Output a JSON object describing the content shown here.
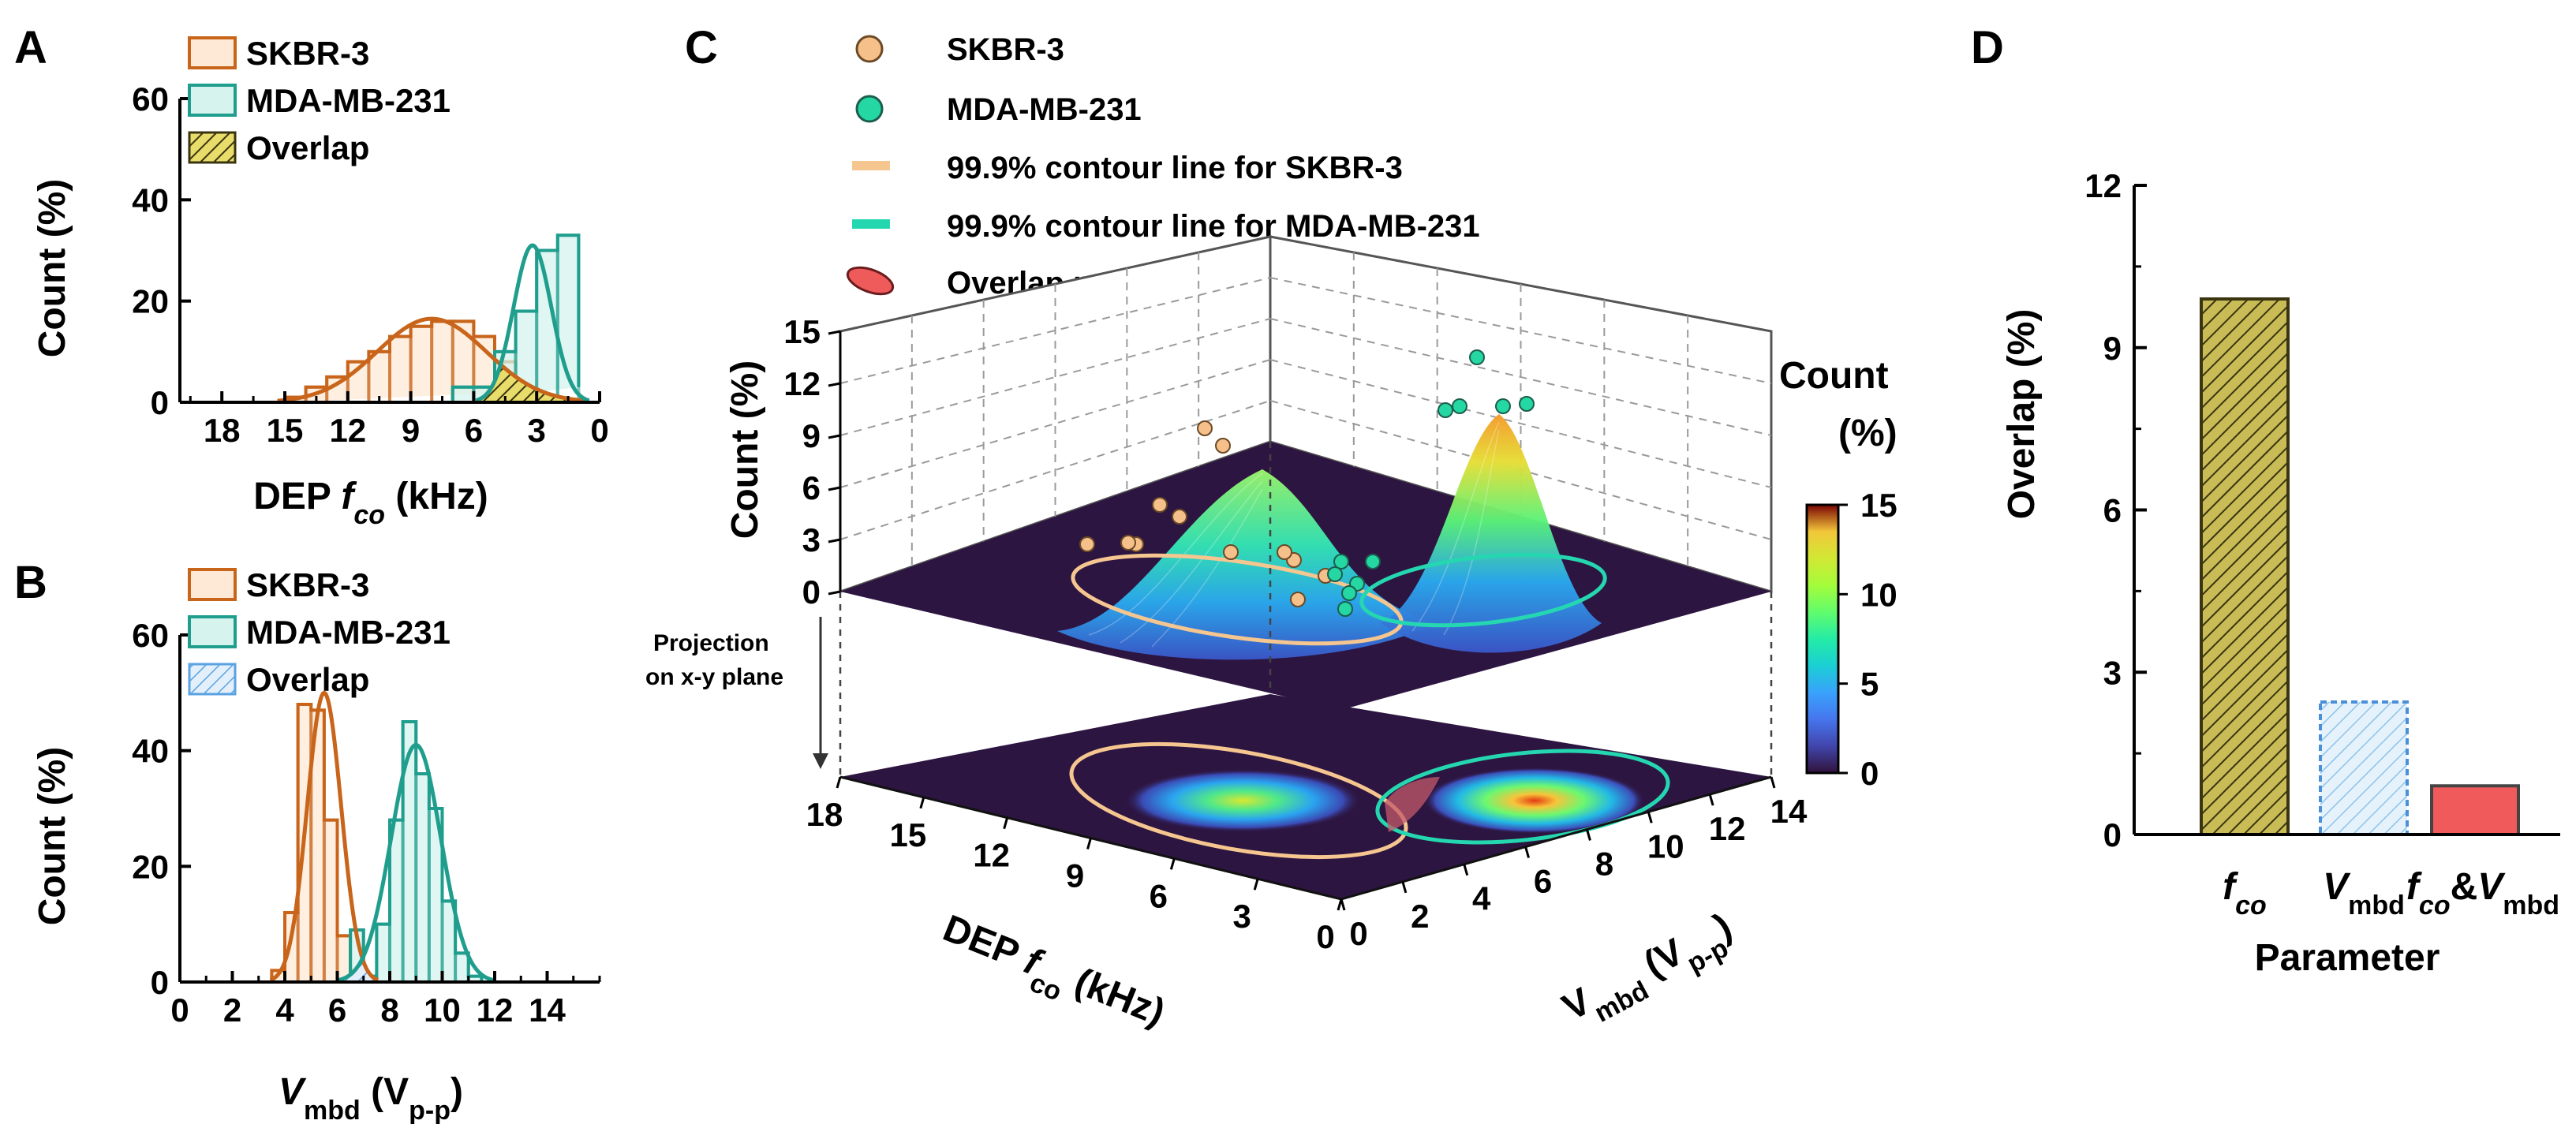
{
  "panels": {
    "A": "A",
    "B": "B",
    "C": "C",
    "D": "D"
  },
  "colors": {
    "skbr": "#c8651b",
    "skbr_fill": "#fde9d5",
    "mda": "#1f9e8e",
    "mda_fill": "#d6f3ee",
    "overlap_A": "#c9b53a",
    "overlap_B": "#5aa2e0",
    "overlap_D": "#f05a5a",
    "plane": "#2d1541"
  },
  "chart_data": [
    {
      "id": "A",
      "type": "bar",
      "title": "",
      "xlabel_parts": [
        "DEP ",
        "f",
        "co",
        " (kHz)"
      ],
      "ylabel": "Count (%)",
      "xlim": [
        20,
        0
      ],
      "ylim": [
        0,
        60
      ],
      "xticks": [
        "18",
        "15",
        "12",
        "9",
        "6",
        "3",
        "0"
      ],
      "xtick_values": [
        18,
        15,
        12,
        9,
        6,
        3,
        0
      ],
      "yticks": [
        "0",
        "20",
        "40",
        "60"
      ],
      "ytick_values": [
        0,
        20,
        40,
        60
      ],
      "legend": [
        "SKBR-3",
        "MDA-MB-231",
        "Overlap"
      ],
      "series": [
        {
          "name": "SKBR-3",
          "bins_edges": [
            15,
            14,
            13,
            12,
            11,
            10,
            9,
            8,
            7,
            6,
            5,
            4
          ],
          "values": [
            1,
            3,
            5,
            8,
            10,
            13,
            15,
            16,
            16,
            13,
            8,
            2
          ],
          "fit_peak": 8,
          "fit_amp": 16.5,
          "fit_sigma": 2.6
        },
        {
          "name": "MDA-MB-231",
          "bins_edges": [
            7,
            6,
            5,
            4,
            3,
            2,
            1
          ],
          "values": [
            3,
            3,
            10,
            18,
            30,
            33,
            3
          ],
          "fit_peak": 3.2,
          "fit_amp": 31,
          "fit_sigma": 0.9
        }
      ]
    },
    {
      "id": "B",
      "type": "bar",
      "title": "",
      "xlabel_parts": [
        "V",
        "mbd",
        " (V",
        "p-p",
        ")"
      ],
      "ylabel": "Count (%)",
      "xlim": [
        0,
        16
      ],
      "ylim": [
        0,
        60
      ],
      "xticks": [
        "0",
        "2",
        "4",
        "6",
        "8",
        "10",
        "12",
        "14"
      ],
      "xtick_values": [
        0,
        2,
        4,
        6,
        8,
        10,
        12,
        14
      ],
      "yticks": [
        "0",
        "20",
        "40",
        "60"
      ],
      "ytick_values": [
        0,
        20,
        40,
        60
      ],
      "legend": [
        "SKBR-3",
        "MDA-MB-231",
        "Overlap"
      ],
      "series": [
        {
          "name": "SKBR-3",
          "bins_edges": [
            3.5,
            4,
            4.5,
            5,
            5.5,
            6,
            6.5,
            7
          ],
          "values": [
            2,
            12,
            48,
            47,
            28,
            8,
            2
          ],
          "fit_peak": 5.5,
          "fit_amp": 50,
          "fit_sigma": 0.65
        },
        {
          "name": "MDA-MB-231",
          "bins_edges": [
            6.5,
            7,
            7.5,
            8,
            8.5,
            9,
            9.5,
            10,
            10.5,
            11,
            11.5
          ],
          "values": [
            9,
            1,
            10,
            28,
            45,
            36,
            30,
            14,
            5,
            1
          ],
          "fit_peak": 9.0,
          "fit_amp": 41,
          "fit_sigma": 0.95
        }
      ]
    },
    {
      "id": "C",
      "type": "surface3d",
      "title": "",
      "zlabel": "Count (%)",
      "xlabel_parts": [
        "DEP ",
        "f",
        "co",
        " (kHz)"
      ],
      "ylabel_parts": [
        "V",
        "mbd",
        " (V",
        "p-p",
        ")"
      ],
      "xticks": [
        "18",
        "15",
        "12",
        "9",
        "6",
        "3",
        "0"
      ],
      "yticks": [
        "0",
        "2",
        "4",
        "6",
        "8",
        "10",
        "12",
        "14"
      ],
      "zticks": [
        "0",
        "3",
        "6",
        "9",
        "12",
        "15"
      ],
      "colorbar_title": "Count",
      "colorbar_unit": "(%)",
      "colorbar_ticks": [
        "0",
        "5",
        "10",
        "15"
      ],
      "colorbar_range": [
        0,
        15
      ],
      "legend": [
        "SKBR-3",
        "MDA-MB-231",
        "99.9% contour line for SKBR-3",
        "99.9% contour line for MDA-MB-231",
        "Overlap region"
      ],
      "projection_label": [
        "Projection",
        "on x-y plane"
      ],
      "peaks": [
        {
          "name": "SKBR-3",
          "fco": 8,
          "vmbd": 5.5,
          "max": 7
        },
        {
          "name": "MDA-MB-231",
          "fco": 3,
          "vmbd": 9,
          "max": 10
        }
      ]
    },
    {
      "id": "D",
      "type": "bar",
      "title": "",
      "xlabel": "Parameter",
      "ylabel": "Overlap (%)",
      "ylim": [
        0,
        12
      ],
      "yticks": [
        "0",
        "3",
        "6",
        "9",
        "12"
      ],
      "ytick_values": [
        0,
        3,
        6,
        9,
        12
      ],
      "categories": [
        "fco",
        "Vmbd",
        "fco&Vmbd"
      ],
      "values": [
        9.9,
        2.45,
        0.9
      ]
    }
  ]
}
